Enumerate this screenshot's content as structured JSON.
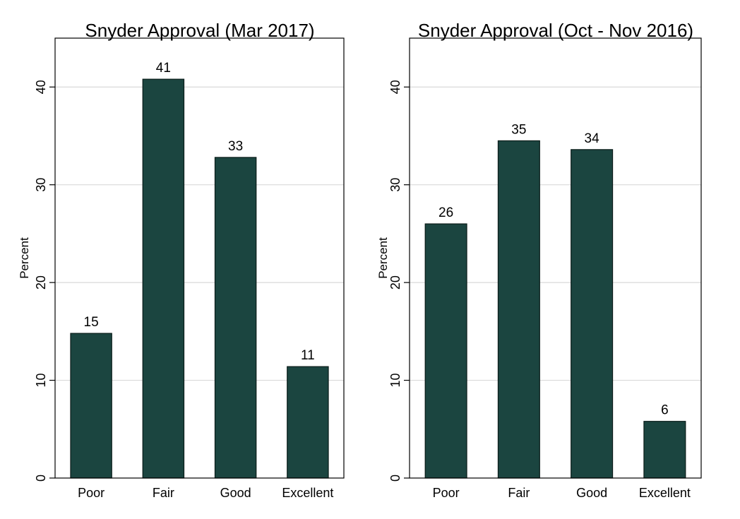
{
  "colors": {
    "bar": "#1b4540",
    "bar_stroke": "#0a1c19",
    "grid": "#d9d9d9",
    "axis": "#000000",
    "background": "#ffffff"
  },
  "chart_data": [
    {
      "type": "bar",
      "title": "Snyder Approval (Mar 2017)",
      "xlabel": "",
      "ylabel": "Percent",
      "categories": [
        "Poor",
        "Fair",
        "Good",
        "Excellent"
      ],
      "values": [
        14.8,
        40.8,
        32.8,
        11.4
      ],
      "data_labels": [
        "15",
        "41",
        "33",
        "11"
      ],
      "ylim": [
        0,
        45
      ],
      "yticks": [
        0,
        10,
        20,
        30,
        40
      ],
      "ytick_labels": [
        "0",
        "10",
        "20",
        "30",
        "40"
      ],
      "grid": true
    },
    {
      "type": "bar",
      "title": "Snyder Approval (Oct - Nov 2016)",
      "xlabel": "",
      "ylabel": "Percent",
      "categories": [
        "Poor",
        "Fair",
        "Good",
        "Excellent"
      ],
      "values": [
        26.0,
        34.5,
        33.6,
        5.8
      ],
      "data_labels": [
        "26",
        "35",
        "34",
        "6"
      ],
      "ylim": [
        0,
        45
      ],
      "yticks": [
        0,
        10,
        20,
        30,
        40
      ],
      "ytick_labels": [
        "0",
        "10",
        "20",
        "30",
        "40"
      ],
      "grid": true
    }
  ]
}
